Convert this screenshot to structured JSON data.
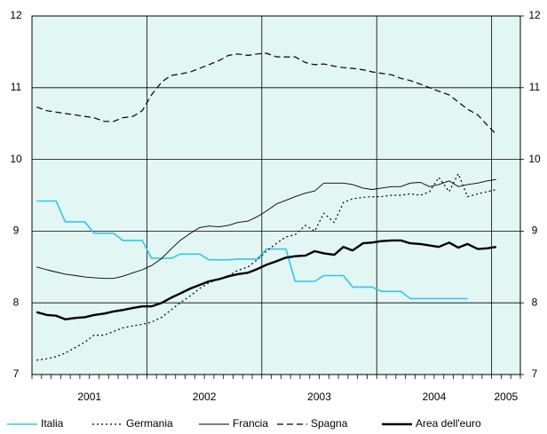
{
  "chart_data": {
    "type": "line",
    "x": [
      2001.04,
      2001.13,
      2001.21,
      2001.29,
      2001.38,
      2001.46,
      2001.54,
      2001.63,
      2001.71,
      2001.79,
      2001.88,
      2001.96,
      2002.04,
      2002.13,
      2002.21,
      2002.29,
      2002.38,
      2002.46,
      2002.54,
      2002.63,
      2002.71,
      2002.79,
      2002.88,
      2002.96,
      2003.04,
      2003.13,
      2003.21,
      2003.29,
      2003.38,
      2003.46,
      2003.54,
      2003.63,
      2003.71,
      2003.79,
      2003.88,
      2003.96,
      2004.04,
      2004.13,
      2004.21,
      2004.29,
      2004.38,
      2004.46,
      2004.54,
      2004.63,
      2004.71,
      2004.79,
      2004.88,
      2004.96,
      2005.04
    ],
    "series": [
      {
        "name": "Italia",
        "color": "#33c7e6",
        "dash": "solid",
        "width": 1.6,
        "values": [
          9.42,
          9.42,
          9.42,
          9.13,
          9.13,
          9.13,
          8.97,
          8.97,
          8.97,
          8.87,
          8.87,
          8.87,
          8.62,
          8.62,
          8.62,
          8.68,
          8.68,
          8.68,
          8.6,
          8.6,
          8.6,
          8.61,
          8.61,
          8.61,
          8.75,
          8.75,
          8.75,
          8.3,
          8.3,
          8.3,
          8.38,
          8.38,
          8.38,
          8.22,
          8.22,
          8.22,
          8.16,
          8.16,
          8.16,
          8.06,
          8.06,
          8.06,
          8.06,
          8.06,
          8.06,
          8.06,
          null,
          null,
          null
        ]
      },
      {
        "name": "Germania",
        "color": "#000000",
        "dash": "dotted",
        "width": 1.2,
        "values": [
          7.2,
          7.22,
          7.25,
          7.3,
          7.38,
          7.45,
          7.55,
          7.55,
          7.6,
          7.65,
          7.68,
          7.7,
          7.73,
          7.8,
          7.9,
          8.0,
          8.1,
          8.2,
          8.28,
          8.33,
          8.38,
          8.45,
          8.5,
          8.6,
          8.72,
          8.83,
          8.92,
          8.95,
          9.08,
          9.0,
          9.25,
          9.12,
          9.4,
          9.45,
          9.47,
          9.48,
          9.48,
          9.5,
          9.5,
          9.52,
          9.5,
          9.55,
          9.75,
          9.55,
          9.8,
          9.48,
          9.52,
          9.55,
          9.58
        ]
      },
      {
        "name": "Francia",
        "color": "#000000",
        "dash": "solid",
        "width": 0.9,
        "values": [
          8.5,
          8.46,
          8.43,
          8.4,
          8.38,
          8.36,
          8.35,
          8.34,
          8.34,
          8.37,
          8.42,
          8.46,
          8.52,
          8.62,
          8.75,
          8.87,
          8.97,
          9.05,
          9.07,
          9.06,
          9.08,
          9.12,
          9.14,
          9.2,
          9.28,
          9.38,
          9.43,
          9.48,
          9.53,
          9.56,
          9.67,
          9.67,
          9.67,
          9.65,
          9.6,
          9.58,
          9.6,
          9.62,
          9.62,
          9.67,
          9.68,
          9.62,
          9.65,
          9.7,
          9.62,
          9.65,
          9.67,
          9.7,
          9.72
        ]
      },
      {
        "name": "Spagna",
        "color": "#000000",
        "dash": "dashed",
        "width": 1.2,
        "values": [
          10.73,
          10.68,
          10.66,
          10.64,
          10.62,
          10.6,
          10.58,
          10.53,
          10.53,
          10.58,
          10.6,
          10.68,
          10.9,
          11.08,
          11.17,
          11.19,
          11.22,
          11.27,
          11.32,
          11.38,
          11.45,
          11.47,
          11.45,
          11.47,
          11.48,
          11.43,
          11.43,
          11.43,
          11.35,
          11.32,
          11.33,
          11.3,
          11.28,
          11.27,
          11.25,
          11.22,
          11.2,
          11.18,
          11.13,
          11.1,
          11.05,
          11.0,
          10.95,
          10.9,
          10.8,
          10.7,
          10.62,
          10.48,
          10.35
        ]
      },
      {
        "name": "Area dell'euro",
        "color": "#000000",
        "dash": "solid",
        "width": 2.4,
        "values": [
          7.87,
          7.83,
          7.82,
          7.77,
          7.79,
          7.8,
          7.83,
          7.85,
          7.88,
          7.9,
          7.93,
          7.95,
          7.95,
          8.0,
          8.07,
          8.13,
          8.2,
          8.25,
          8.3,
          8.33,
          8.37,
          8.4,
          8.42,
          8.47,
          8.53,
          8.58,
          8.63,
          8.65,
          8.66,
          8.72,
          8.69,
          8.67,
          8.78,
          8.73,
          8.83,
          8.84,
          8.86,
          8.87,
          8.87,
          8.83,
          8.82,
          8.8,
          8.78,
          8.84,
          8.77,
          8.82,
          8.75,
          8.76,
          8.78
        ]
      }
    ],
    "xlim": [
      2001,
      2005.25
    ],
    "xticks": [
      {
        "value": 2001.5,
        "label": "2001"
      },
      {
        "value": 2002.5,
        "label": "2002"
      },
      {
        "value": 2003.5,
        "label": "2003"
      },
      {
        "value": 2004.5,
        "label": "2004"
      },
      {
        "value": 2005.125,
        "label": "2005"
      }
    ],
    "xgrid": [
      2002,
      2003,
      2004,
      2005
    ],
    "ylim": [
      7,
      12
    ],
    "yticks": [
      7,
      8,
      9,
      10,
      11,
      12
    ],
    "y2lim": [
      7,
      12
    ],
    "y2ticks": [
      7,
      8,
      9,
      10,
      11,
      12
    ],
    "grid": true,
    "background": "#e2f6f4",
    "legend": "bottom"
  }
}
